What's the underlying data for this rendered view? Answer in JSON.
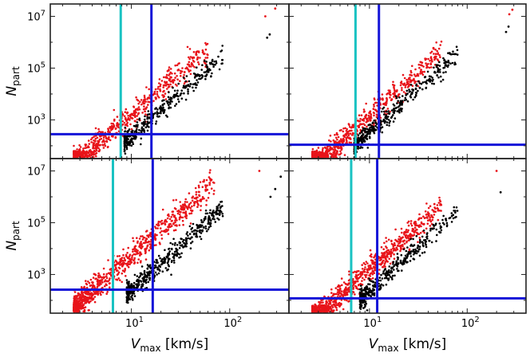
{
  "figure": {
    "description_free": true
  },
  "colors": {
    "red_series": "#e8141a",
    "black_series": "#000000",
    "threshold_line": "#1414d8",
    "vmax_cut_line": "#19c2c2",
    "frame": "#222222"
  },
  "chart_data": [
    {
      "type": "scatter",
      "position": "top-left",
      "xscale": "log",
      "yscale": "log",
      "xlim": [
        1.5,
        400
      ],
      "ylim": [
        32,
        30000000
      ],
      "xlabel": "",
      "ylabel": "N_part",
      "xticks": [],
      "yticks": [
        {
          "value": 1000,
          "base": "10",
          "exp": "3"
        },
        {
          "value": 100000,
          "base": "10",
          "exp": "5"
        },
        {
          "value": 10000000,
          "base": "10",
          "exp": "7"
        }
      ],
      "hlines": [
        {
          "y": 280,
          "color_key": "threshold_line"
        }
      ],
      "vlines": [
        {
          "x": 7.8,
          "color_key": "vmax_cut_line"
        },
        {
          "x": 16,
          "color_key": "threshold_line"
        }
      ],
      "series": [
        {
          "name": "red",
          "color_key": "red_series",
          "points": 700,
          "vmin": 2.6,
          "vmax": 60,
          "slope": 3.3,
          "y_at_x10": 1600,
          "spread_dex": 0.26,
          "seed": 11,
          "extra": [
            {
              "x": 230,
              "y": 10000000
            },
            {
              "x": 290,
              "y": 20000000
            }
          ]
        },
        {
          "name": "black",
          "color_key": "black_series",
          "points": 380,
          "vmin": 8.5,
          "vmax": 85,
          "slope": 3.3,
          "y_at_x10": 250,
          "spread_dex": 0.18,
          "seed": 23,
          "extra": [
            {
              "x": 240,
              "y": 1500000
            },
            {
              "x": 255,
              "y": 2000000
            }
          ]
        }
      ]
    },
    {
      "type": "scatter",
      "position": "top-right",
      "xscale": "log",
      "yscale": "log",
      "xlim": [
        1.5,
        400
      ],
      "ylim": [
        32,
        30000000
      ],
      "xlabel": "",
      "ylabel": "",
      "xticks": [],
      "yticks": [],
      "hlines": [
        {
          "y": 110,
          "color_key": "threshold_line"
        }
      ],
      "vlines": [
        {
          "x": 7.2,
          "color_key": "vmax_cut_line"
        },
        {
          "x": 12.5,
          "color_key": "threshold_line"
        }
      ],
      "series": [
        {
          "name": "red",
          "color_key": "red_series",
          "points": 700,
          "vmin": 2.6,
          "vmax": 55,
          "slope": 3.4,
          "y_at_x10": 1300,
          "spread_dex": 0.24,
          "seed": 37,
          "extra": [
            {
              "x": 270,
              "y": 12000000
            },
            {
              "x": 290,
              "y": 18000000
            }
          ]
        },
        {
          "name": "black",
          "color_key": "black_series",
          "points": 420,
          "vmin": 7,
          "vmax": 80,
          "slope": 3.4,
          "y_at_x10": 320,
          "spread_dex": 0.18,
          "seed": 41,
          "extra": [
            {
              "x": 250,
              "y": 2500000
            },
            {
              "x": 265,
              "y": 4000000
            }
          ]
        }
      ]
    },
    {
      "type": "scatter",
      "position": "bottom-left",
      "xscale": "log",
      "yscale": "log",
      "xlim": [
        1.5,
        400
      ],
      "ylim": [
        32,
        30000000
      ],
      "xlabel": "V_max [km/s]",
      "ylabel": "N_part",
      "xticks": [
        {
          "value": 10,
          "base": "10",
          "exp": "1"
        },
        {
          "value": 100,
          "base": "10",
          "exp": "2"
        }
      ],
      "yticks": [
        {
          "value": 1000,
          "base": "10",
          "exp": "3"
        },
        {
          "value": 100000,
          "base": "10",
          "exp": "5"
        },
        {
          "value": 10000000,
          "base": "10",
          "exp": "7"
        }
      ],
      "hlines": [
        {
          "y": 260,
          "color_key": "threshold_line"
        }
      ],
      "vlines": [
        {
          "x": 6.5,
          "color_key": "vmax_cut_line"
        },
        {
          "x": 16.5,
          "color_key": "threshold_line"
        }
      ],
      "series": [
        {
          "name": "red",
          "color_key": "red_series",
          "points": 900,
          "vmin": 2.6,
          "vmax": 70,
          "slope": 3.4,
          "y_at_x10": 5000,
          "spread_dex": 0.26,
          "seed": 53,
          "extra": [
            {
              "x": 200,
              "y": 10000000
            }
          ]
        },
        {
          "name": "black",
          "color_key": "black_series",
          "points": 500,
          "vmin": 9,
          "vmax": 85,
          "slope": 3.4,
          "y_at_x10": 260,
          "spread_dex": 0.2,
          "seed": 61,
          "extra": [
            {
              "x": 260,
              "y": 1000000
            },
            {
              "x": 290,
              "y": 2000000
            },
            {
              "x": 330,
              "y": 6000000
            }
          ]
        }
      ]
    },
    {
      "type": "scatter",
      "position": "bottom-right",
      "xscale": "log",
      "yscale": "log",
      "xlim": [
        1.5,
        400
      ],
      "ylim": [
        32,
        30000000
      ],
      "xlabel": "V_max [km/s]",
      "ylabel": "",
      "xticks": [
        {
          "value": 10,
          "base": "10",
          "exp": "1"
        },
        {
          "value": 100,
          "base": "10",
          "exp": "2"
        }
      ],
      "yticks": [],
      "hlines": [
        {
          "y": 120,
          "color_key": "threshold_line"
        }
      ],
      "vlines": [
        {
          "x": 6.5,
          "color_key": "vmax_cut_line"
        },
        {
          "x": 12,
          "color_key": "threshold_line"
        }
      ],
      "series": [
        {
          "name": "red",
          "color_key": "red_series",
          "points": 900,
          "vmin": 2.6,
          "vmax": 55,
          "slope": 3.4,
          "y_at_x10": 1500,
          "spread_dex": 0.24,
          "seed": 71,
          "extra": [
            {
              "x": 200,
              "y": 10000000
            }
          ]
        },
        {
          "name": "black",
          "color_key": "black_series",
          "points": 380,
          "vmin": 8,
          "vmax": 80,
          "slope": 3.4,
          "y_at_x10": 230,
          "spread_dex": 0.2,
          "seed": 83,
          "extra": [
            {
              "x": 220,
              "y": 1500000
            }
          ]
        }
      ]
    }
  ]
}
